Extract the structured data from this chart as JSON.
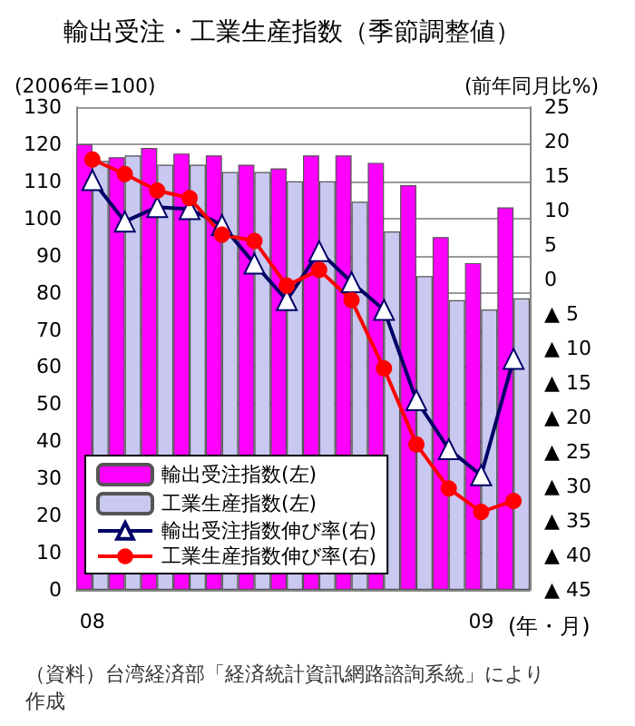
{
  "chart_data": {
    "type": "bar",
    "title": "輸出受注・工業生産指数（季節調整値）",
    "ylabel": "(2006年=100)",
    "y2label": "(前年同月比%)",
    "xlabel": "(年・月)",
    "categories": [
      "08",
      null,
      null,
      null,
      null,
      null,
      null,
      null,
      null,
      null,
      null,
      null,
      "09",
      null
    ],
    "series": [
      {
        "name": "輸出受注指数(左)",
        "color": "#ff00ff",
        "values": [
          120,
          116.5,
          119,
          117.5,
          117,
          114.5,
          113.5,
          117,
          117,
          115,
          109,
          95,
          88,
          103
        ]
      },
      {
        "name": "工業生産指数(左)",
        "color": "#c8c8f0",
        "values": [
          115.5,
          117,
          114.5,
          114.5,
          112.5,
          112.5,
          110,
          110,
          104.5,
          96.5,
          84.5,
          78,
          75.5,
          78.5
        ]
      },
      {
        "name": "輸出受注指数伸び率(右)",
        "type": "line",
        "axis": "y2",
        "marker": "triangle",
        "color": "#000066",
        "values": [
          14.4,
          8.4,
          10.5,
          10.2,
          7.9,
          2.3,
          -3,
          4.1,
          -0.4,
          -4.4,
          -17.5,
          -24.6,
          -28.4,
          -11.5
        ]
      },
      {
        "name": "工業生産指数伸び率(右)",
        "type": "line",
        "axis": "y2",
        "marker": "circle",
        "color": "#ff0000",
        "values": [
          17.4,
          15.3,
          12.9,
          11.8,
          6.5,
          5.6,
          -0.9,
          1.4,
          -3,
          -12.9,
          -23.9,
          -30.3,
          -33.7,
          -32.1
        ]
      }
    ],
    "ylim": [
      0,
      130
    ],
    "yticks": [
      0,
      10,
      20,
      30,
      40,
      50,
      60,
      70,
      80,
      90,
      100,
      110,
      120,
      130
    ],
    "y2lim": [
      -45,
      25
    ],
    "y2ticks": [
      {
        "value": -45,
        "label": "▲ 45"
      },
      {
        "value": -40,
        "label": "▲ 40"
      },
      {
        "value": -35,
        "label": "▲ 35"
      },
      {
        "value": -30,
        "label": "▲ 30"
      },
      {
        "value": -25,
        "label": "▲ 25"
      },
      {
        "value": -20,
        "label": "▲ 20"
      },
      {
        "value": -15,
        "label": "▲ 15"
      },
      {
        "value": -10,
        "label": "▲ 10"
      },
      {
        "value": -5,
        "label": "▲ 5"
      },
      0,
      5,
      10,
      15,
      20,
      25
    ],
    "grid": "y",
    "legend": "bottom left",
    "annotations": [
      "（資料）台湾経済部「経済統計資訊網路諮詢系統」により作成"
    ]
  }
}
